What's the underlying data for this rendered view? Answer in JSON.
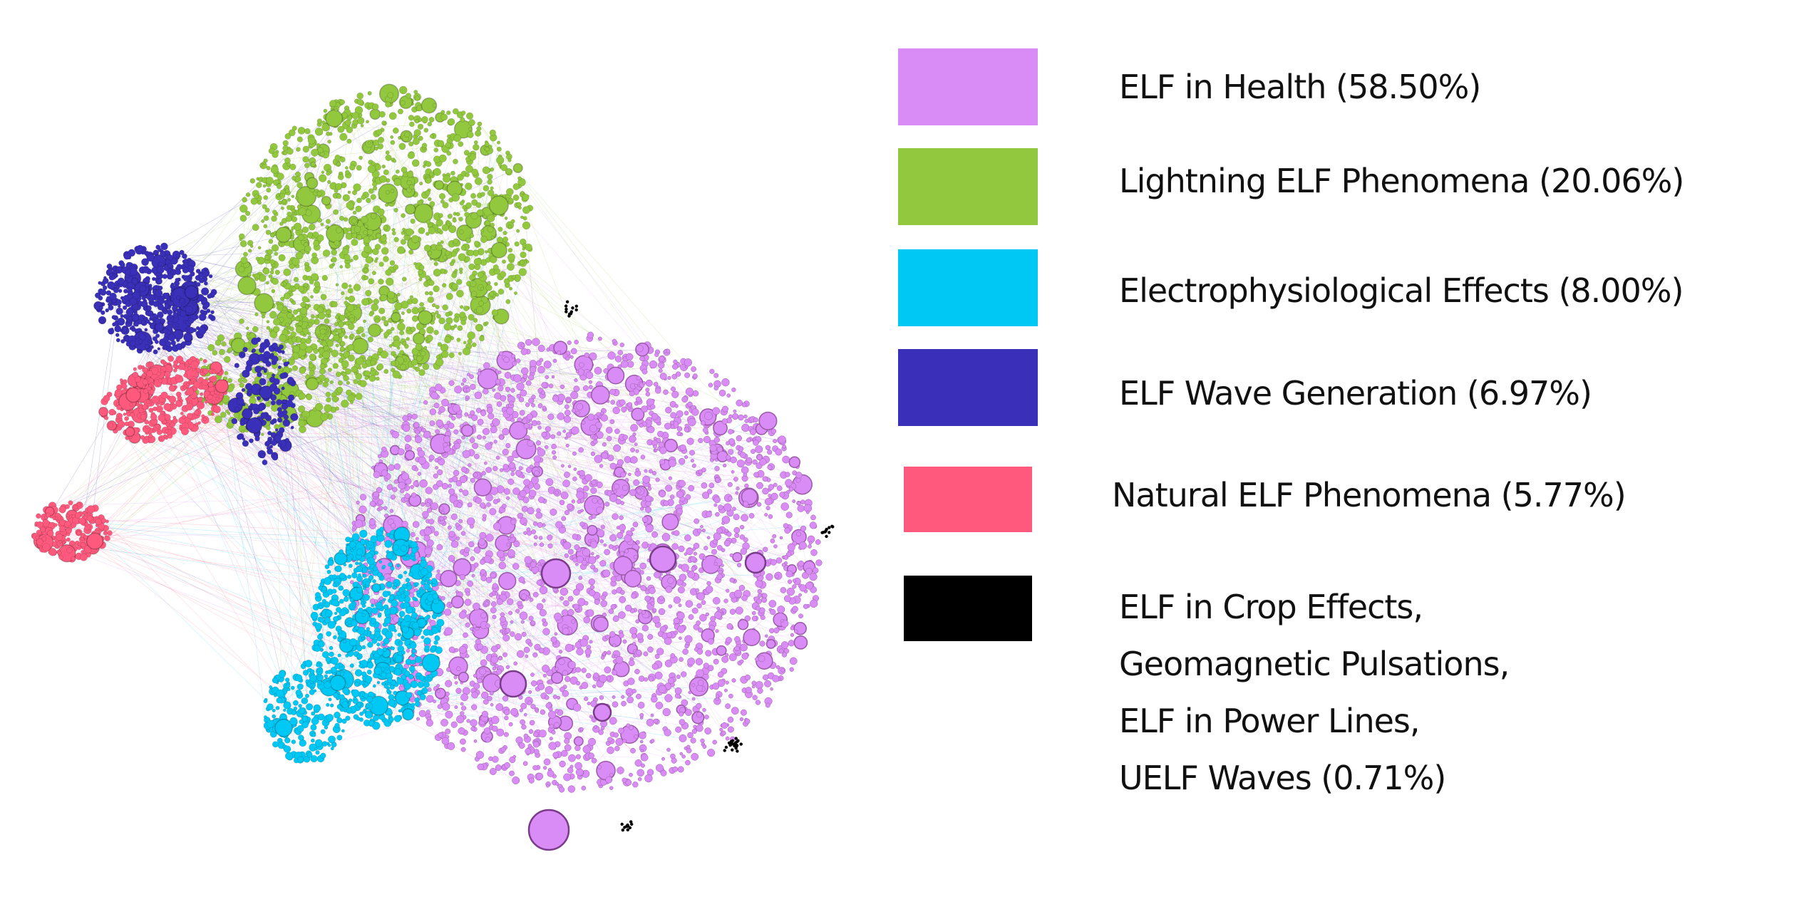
{
  "legend": [
    {
      "label": "ELF in Health (58.50%)",
      "color": "#d98cf5",
      "share": 58.5
    },
    {
      "label": "Lightning ELF Phenomena (20.06%)",
      "color": "#92c83e",
      "share": 20.06
    },
    {
      "label": "Electrophysiological Effects (8.00%)",
      "color": "#00c8f5",
      "share": 8.0
    },
    {
      "label": "ELF Wave Generation (6.97%)",
      "color": "#3a2fb8",
      "share": 6.97
    },
    {
      "label": "Natural ELF Phenomena (5.77%)",
      "color": "#ff5a7d",
      "share": 5.77
    },
    {
      "label_lines": [
        "ELF in Crop Effects,",
        "Geomagnetic Pulsations,",
        "ELF in Power Lines,",
        "UELF Waves (0.71%)"
      ],
      "color": "#000000",
      "share": 0.71
    }
  ]
}
